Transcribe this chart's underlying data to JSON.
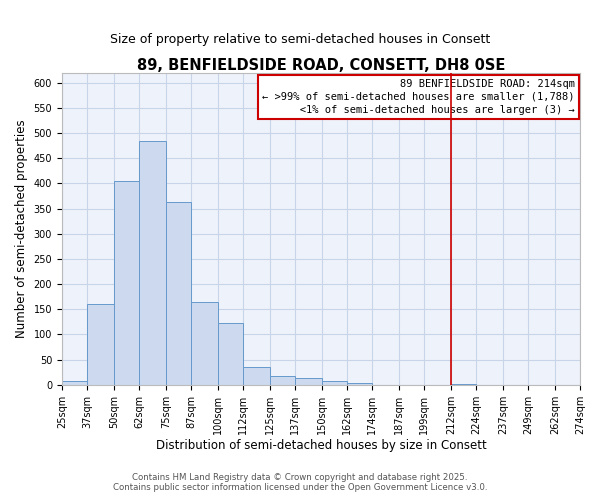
{
  "title": "89, BENFIELDSIDE ROAD, CONSETT, DH8 0SE",
  "subtitle": "Size of property relative to semi-detached houses in Consett",
  "xlabel": "Distribution of semi-detached houses by size in Consett",
  "ylabel": "Number of semi-detached properties",
  "bin_edges": [
    25,
    37,
    50,
    62,
    75,
    87,
    100,
    112,
    125,
    137,
    150,
    162,
    174,
    187,
    199,
    212,
    224,
    237,
    249,
    262,
    274
  ],
  "bin_counts": [
    7,
    161,
    405,
    484,
    363,
    165,
    122,
    35,
    18,
    13,
    8,
    3,
    0,
    0,
    0,
    1,
    0,
    0,
    0,
    0
  ],
  "bar_facecolor": "#ccd9ee",
  "bar_edgecolor": "#6699cc",
  "vline_x": 212,
  "vline_color": "#cc0000",
  "ylim": [
    0,
    620
  ],
  "yticks": [
    0,
    50,
    100,
    150,
    200,
    250,
    300,
    350,
    400,
    450,
    500,
    550,
    600
  ],
  "xtick_labels": [
    "25sqm",
    "37sqm",
    "50sqm",
    "62sqm",
    "75sqm",
    "87sqm",
    "100sqm",
    "112sqm",
    "125sqm",
    "137sqm",
    "150sqm",
    "162sqm",
    "174sqm",
    "187sqm",
    "199sqm",
    "212sqm",
    "224sqm",
    "237sqm",
    "249sqm",
    "262sqm",
    "274sqm"
  ],
  "grid_color": "#c8d4e8",
  "background_color": "#eef2fa",
  "annotation_line0": "89 BENFIELDSIDE ROAD: 214sqm",
  "annotation_line1": "← >99% of semi-detached houses are smaller (1,788)",
  "annotation_line2": "<1% of semi-detached houses are larger (3) →",
  "footer1": "Contains HM Land Registry data © Crown copyright and database right 2025.",
  "footer2": "Contains public sector information licensed under the Open Government Licence v3.0.",
  "title_fontsize": 10.5,
  "subtitle_fontsize": 9,
  "axis_label_fontsize": 8.5,
  "tick_fontsize": 7,
  "annotation_fontsize": 7.5,
  "footer_fontsize": 6.2
}
